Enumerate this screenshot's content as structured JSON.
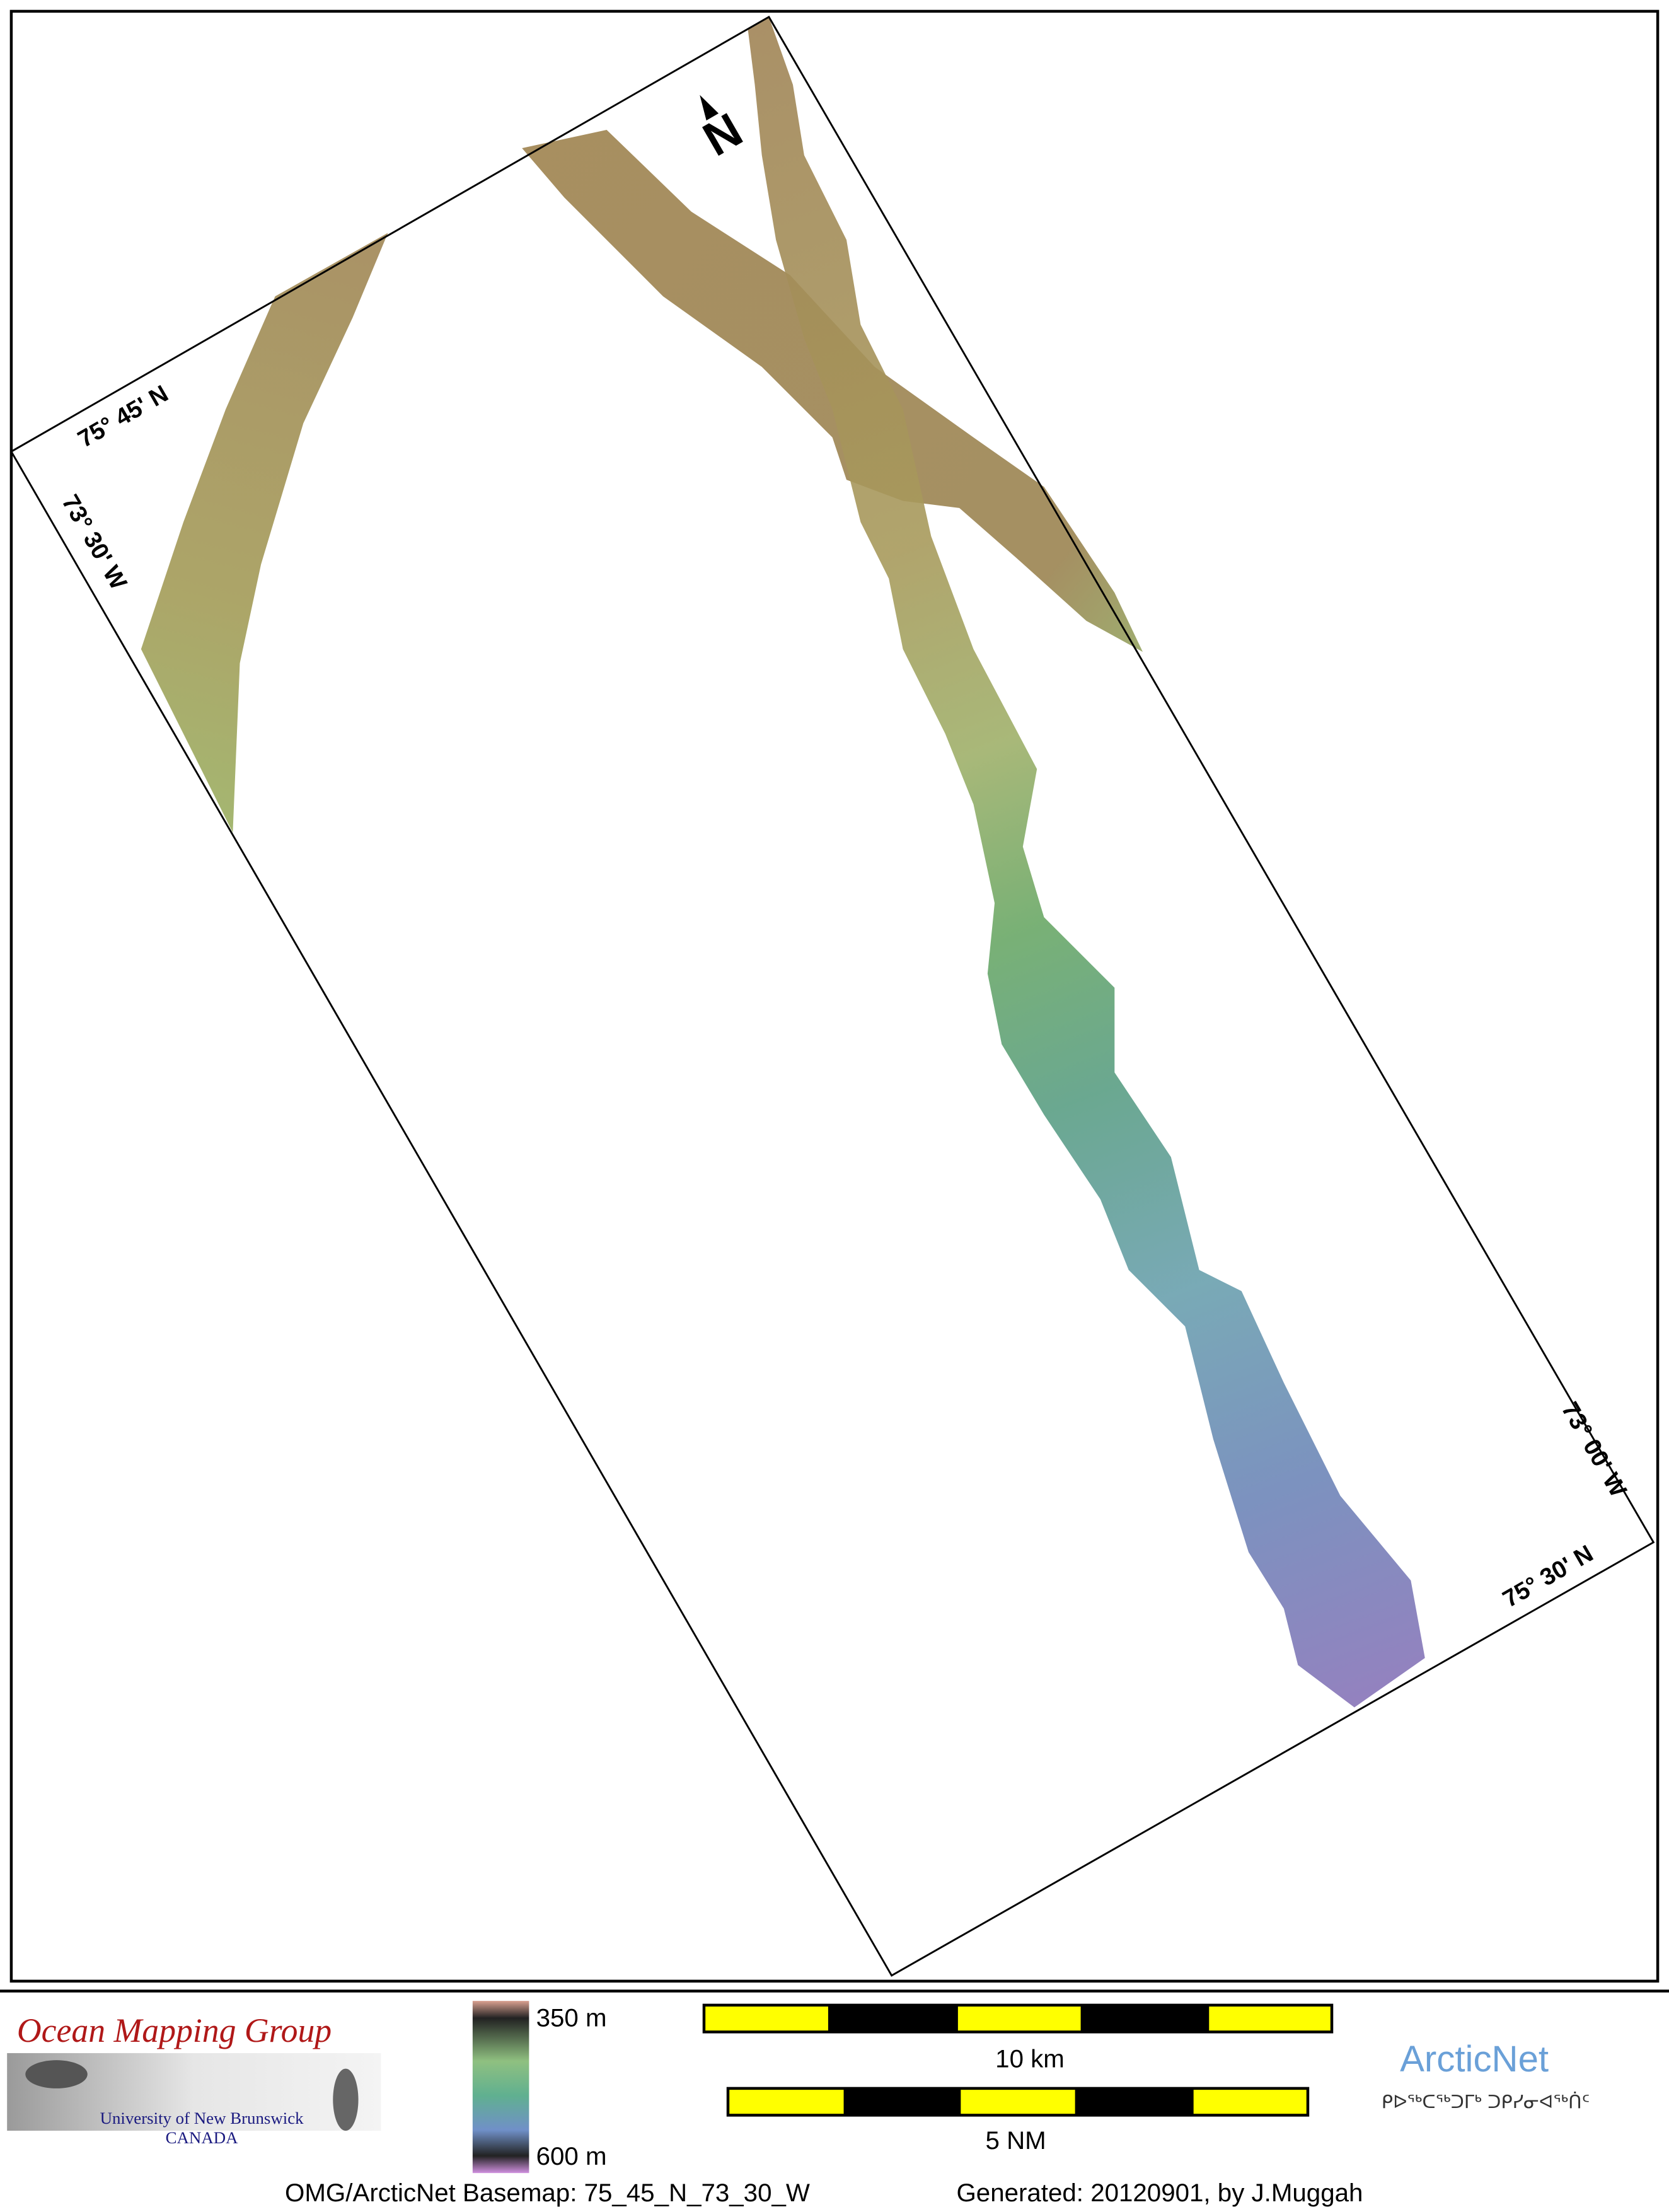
{
  "map": {
    "labels": {
      "lat_north": "75° 45' N",
      "lon_west": "73° 30' W",
      "lon_east": "73° 00' W",
      "lat_south": "75° 30' N"
    },
    "north_arrow": "N",
    "legend": {
      "depth_top": "350 m",
      "depth_bottom": "600 m",
      "scale_km": "10 km",
      "scale_nm": "5 NM"
    },
    "logos": {
      "omg_title": "Ocean Mapping Group",
      "omg_university": "University of New Brunswick",
      "omg_country": "CANADA",
      "arcticnet": "ArcticNet",
      "arcticnet_inuktitut": "ᑭᐅᖅᑕᖅᑐᒥᒃ ᑐᑭᓯᓂᐊᖅᑏᑦ"
    },
    "footer": {
      "basemap": "OMG/ArcticNet Basemap: 75_45_N_73_30_W",
      "generated": "Generated: 20120901, by J.Muggah"
    }
  }
}
